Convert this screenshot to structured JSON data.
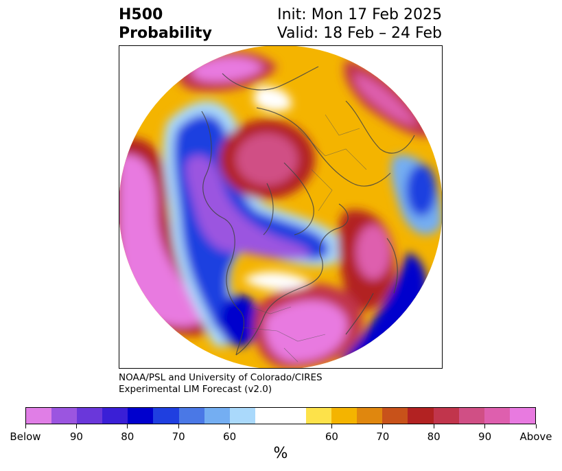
{
  "title": {
    "left_line1": "H500",
    "left_line2": "Probability",
    "right_line1": "Init: Mon 17 Feb 2025",
    "right_line2": "Valid: 18 Feb – 24 Feb"
  },
  "credit": {
    "line1": "NOAA/PSL and University of Colorado/CIRES",
    "line2": "Experimental LIM Forecast (v2.0)"
  },
  "colorbar": {
    "colors": [
      "#e07ee6",
      "#9b55e0",
      "#6a37da",
      "#3a1fd6",
      "#0000cd",
      "#1f3fe0",
      "#4a78e6",
      "#74aef2",
      "#aad9fb",
      "#ffffff",
      "#ffffff",
      "#fde24a",
      "#f4b400",
      "#e0870e",
      "#c8521a",
      "#b22222",
      "#c1354c",
      "#d04f85",
      "#de5fae",
      "#e87ae0"
    ],
    "tick_labels": [
      "Below",
      "90",
      "80",
      "70",
      "60",
      "60",
      "70",
      "80",
      "90",
      "Above"
    ],
    "unit": "%"
  }
}
